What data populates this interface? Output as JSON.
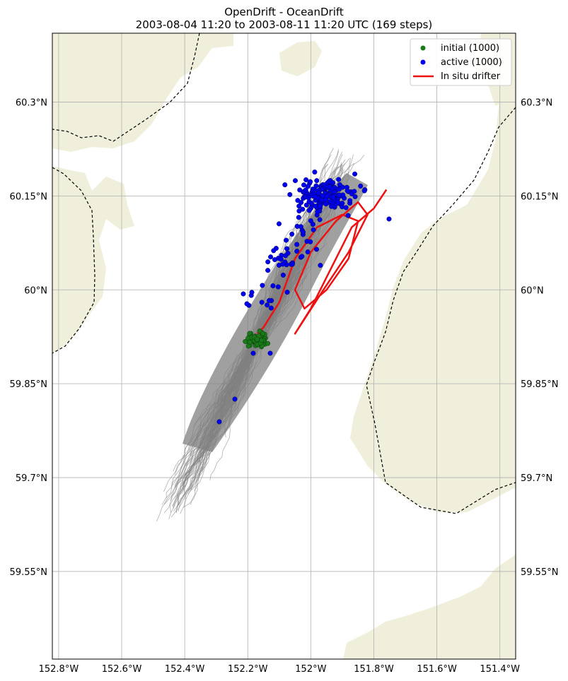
{
  "title": {
    "line1": "OpenDrift - OceanDrift",
    "line2": "2003-08-04 11:20 to 2003-08-11 11:20 UTC (169 steps)"
  },
  "colors": {
    "land": "#efefdb",
    "grid": "#b0b0b0",
    "trajectory": "#808080",
    "initial": "#1a7a1a",
    "active": "#0000ee",
    "drifter": "#ee1111",
    "border": "#000000"
  },
  "legend": {
    "placement": "top-right",
    "entries": [
      {
        "label": "initial (1000)",
        "marker": "dot",
        "color": "green"
      },
      {
        "label": "active (1000)",
        "marker": "dot",
        "color": "blue"
      },
      {
        "label": "In situ drifter",
        "marker": "line",
        "color": "red"
      }
    ]
  },
  "axes": {
    "lon_ticks": [
      "152.8°W",
      "152.6°W",
      "152.4°W",
      "152.2°W",
      "152°W",
      "151.8°W",
      "151.6°W",
      "151.4°W"
    ],
    "lon_values": [
      -152.8,
      -152.6,
      -152.4,
      -152.2,
      -152.0,
      -151.8,
      -151.6,
      -151.4
    ],
    "lat_ticks": [
      "60.3°N",
      "60.15°N",
      "60°N",
      "59.85°N",
      "59.7°N",
      "59.55°N"
    ],
    "lat_values": [
      60.3,
      60.15,
      60.0,
      59.85,
      59.7,
      59.55
    ],
    "lon_range": [
      -152.82,
      -151.35
    ],
    "lat_range": [
      59.41,
      60.41
    ],
    "grid": true
  },
  "map_data": {
    "initial_center": {
      "lon": -152.17,
      "lat": 59.92
    },
    "active_cluster_center": {
      "lon": -151.95,
      "lat": 60.15
    },
    "drifter_track": [
      [
        -152.17,
        59.93
      ],
      [
        -152.15,
        59.94
      ],
      [
        -152.1,
        59.98
      ],
      [
        -152.05,
        60.05
      ],
      [
        -151.98,
        60.1
      ],
      [
        -151.9,
        60.12
      ],
      [
        -151.85,
        60.11
      ],
      [
        -151.88,
        60.05
      ],
      [
        -151.95,
        60.0
      ],
      [
        -152.02,
        59.97
      ],
      [
        -152.05,
        60.0
      ],
      [
        -152.0,
        60.06
      ],
      [
        -151.92,
        60.11
      ],
      [
        -151.85,
        60.14
      ],
      [
        -151.82,
        60.12
      ],
      [
        -151.88,
        60.06
      ],
      [
        -151.96,
        60.0
      ],
      [
        -152.05,
        59.93
      ],
      [
        -152.0,
        59.97
      ],
      [
        -151.93,
        60.04
      ],
      [
        -151.87,
        60.1
      ],
      [
        -151.8,
        60.13
      ],
      [
        -151.76,
        60.16
      ]
    ]
  }
}
